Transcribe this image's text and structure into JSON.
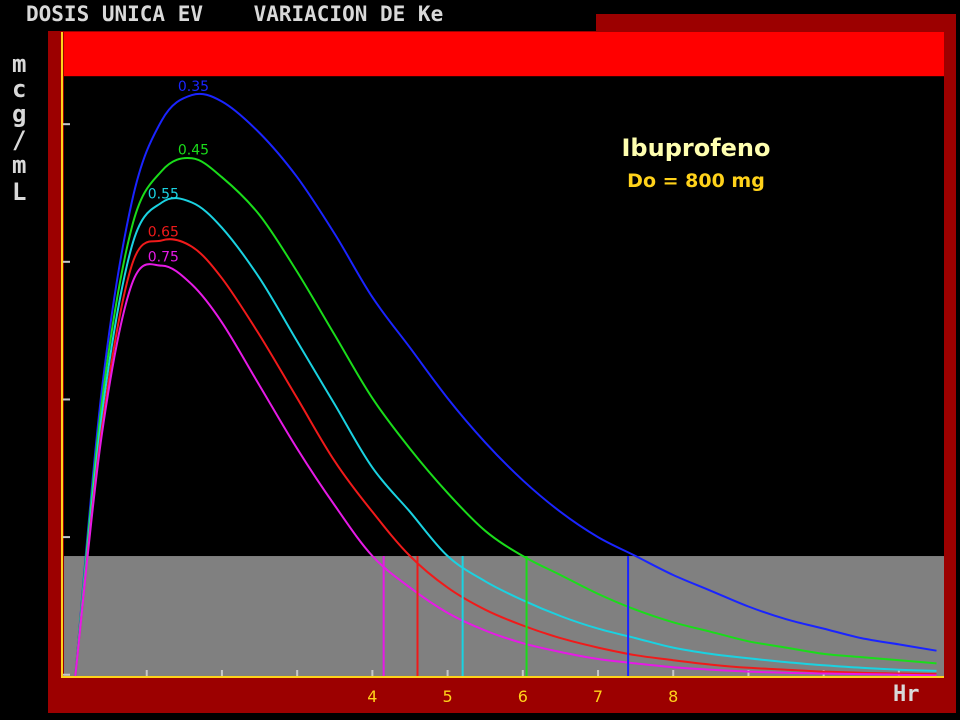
{
  "window_title": "DOSIS UNICA EV    VARIACION DE Ke",
  "chart_data": {
    "type": "line",
    "title": "Ibuprofeno",
    "subtitle": "Do = 800 mg",
    "xlabel": "Hr",
    "ylabel": "mcg/mL",
    "x_ticks": [
      "4",
      "5",
      "6",
      "7",
      "8"
    ],
    "x_tick_values": [
      4,
      5,
      6,
      7,
      8
    ],
    "xlim": [
      -0.1,
      11.6
    ],
    "ylim": [
      0,
      10.2
    ],
    "grid": false,
    "annotations": [
      "upper red band = toxic zone",
      "lower gray band = sub-therapeutic zone"
    ],
    "bands": {
      "toxic": {
        "from": 9.5,
        "to": 10.2,
        "color": "#ff0000"
      },
      "subtherapeutic": {
        "from": 0,
        "to": 1.9,
        "color": "#808080"
      }
    },
    "series": [
      {
        "name": "0.35",
        "color": "#1a24ff",
        "x": [
          0.05,
          0.4,
          0.8,
          1.2,
          1.6,
          2.0,
          2.5,
          3.0,
          3.5,
          4.0,
          4.5,
          5.0,
          5.5,
          6.0,
          6.5,
          7.0,
          7.5,
          8.0,
          8.5,
          9.0,
          9.5,
          10.0,
          10.5,
          11.0,
          11.5
        ],
        "values": [
          0.0,
          4.5,
          7.5,
          8.8,
          9.2,
          9.1,
          8.6,
          7.9,
          7.0,
          6.0,
          5.2,
          4.4,
          3.7,
          3.1,
          2.6,
          2.2,
          1.9,
          1.6,
          1.35,
          1.1,
          0.9,
          0.75,
          0.6,
          0.5,
          0.4
        ]
      },
      {
        "name": "0.45",
        "color": "#1adc1a",
        "x": [
          0.05,
          0.4,
          0.8,
          1.2,
          1.6,
          2.0,
          2.5,
          3.0,
          3.5,
          4.0,
          4.5,
          5.0,
          5.5,
          6.0,
          6.5,
          7.0,
          7.5,
          8.0,
          8.5,
          9.0,
          9.5,
          10.0,
          10.5,
          11.0,
          11.5
        ],
        "values": [
          0.0,
          4.3,
          7.1,
          8.0,
          8.2,
          7.9,
          7.3,
          6.4,
          5.4,
          4.4,
          3.6,
          2.9,
          2.3,
          1.9,
          1.6,
          1.3,
          1.05,
          0.85,
          0.7,
          0.55,
          0.45,
          0.35,
          0.3,
          0.25,
          0.2
        ]
      },
      {
        "name": "0.55",
        "color": "#1ad2e1",
        "x": [
          0.05,
          0.4,
          0.8,
          1.2,
          1.6,
          2.0,
          2.5,
          3.0,
          3.5,
          4.0,
          4.5,
          5.0,
          5.5,
          6.0,
          6.5,
          7.0,
          7.5,
          8.0,
          8.5,
          9.0,
          9.5,
          10.0,
          10.5,
          11.0,
          11.5
        ],
        "values": [
          0.0,
          4.1,
          6.8,
          7.5,
          7.5,
          7.1,
          6.3,
          5.3,
          4.3,
          3.3,
          2.6,
          1.9,
          1.5,
          1.2,
          0.95,
          0.75,
          0.6,
          0.45,
          0.35,
          0.28,
          0.22,
          0.17,
          0.13,
          0.1,
          0.08
        ]
      },
      {
        "name": "0.65",
        "color": "#f01a1a",
        "x": [
          0.05,
          0.4,
          0.8,
          1.2,
          1.6,
          2.0,
          2.5,
          3.0,
          3.5,
          4.0,
          4.5,
          5.0,
          5.5,
          6.0,
          6.5,
          7.0,
          7.5,
          8.0,
          8.5,
          9.0,
          9.5,
          10.0,
          10.5,
          11.0,
          11.5
        ],
        "values": [
          0.0,
          3.9,
          6.5,
          6.9,
          6.8,
          6.3,
          5.4,
          4.4,
          3.4,
          2.6,
          1.9,
          1.4,
          1.05,
          0.8,
          0.6,
          0.45,
          0.33,
          0.25,
          0.18,
          0.13,
          0.1,
          0.07,
          0.05,
          0.04,
          0.03
        ]
      },
      {
        "name": "0.75",
        "color": "#e61ae6",
        "x": [
          0.05,
          0.4,
          0.8,
          1.2,
          1.6,
          2.0,
          2.5,
          3.0,
          3.5,
          4.0,
          4.5,
          5.0,
          5.5,
          6.0,
          6.5,
          7.0,
          7.5,
          8.0,
          8.5,
          9.0,
          9.5,
          10.0,
          10.5,
          11.0,
          11.5
        ],
        "values": [
          0.0,
          3.8,
          6.2,
          6.5,
          6.2,
          5.6,
          4.6,
          3.6,
          2.7,
          1.9,
          1.4,
          1.0,
          0.72,
          0.52,
          0.38,
          0.27,
          0.2,
          0.14,
          0.1,
          0.07,
          0.05,
          0.04,
          0.03,
          0.02,
          0.01
        ]
      }
    ],
    "cutoffs": [
      {
        "series": "0.75",
        "x": 4.15
      },
      {
        "series": "0.65",
        "x": 4.6
      },
      {
        "series": "0.55",
        "x": 5.2
      },
      {
        "series": "0.45",
        "x": 6.05
      },
      {
        "series": "0.35",
        "x": 7.4
      }
    ]
  },
  "colors": {
    "frame_red": "#b30000",
    "axis_yellow": "#ffd21a",
    "background": "#000000"
  }
}
